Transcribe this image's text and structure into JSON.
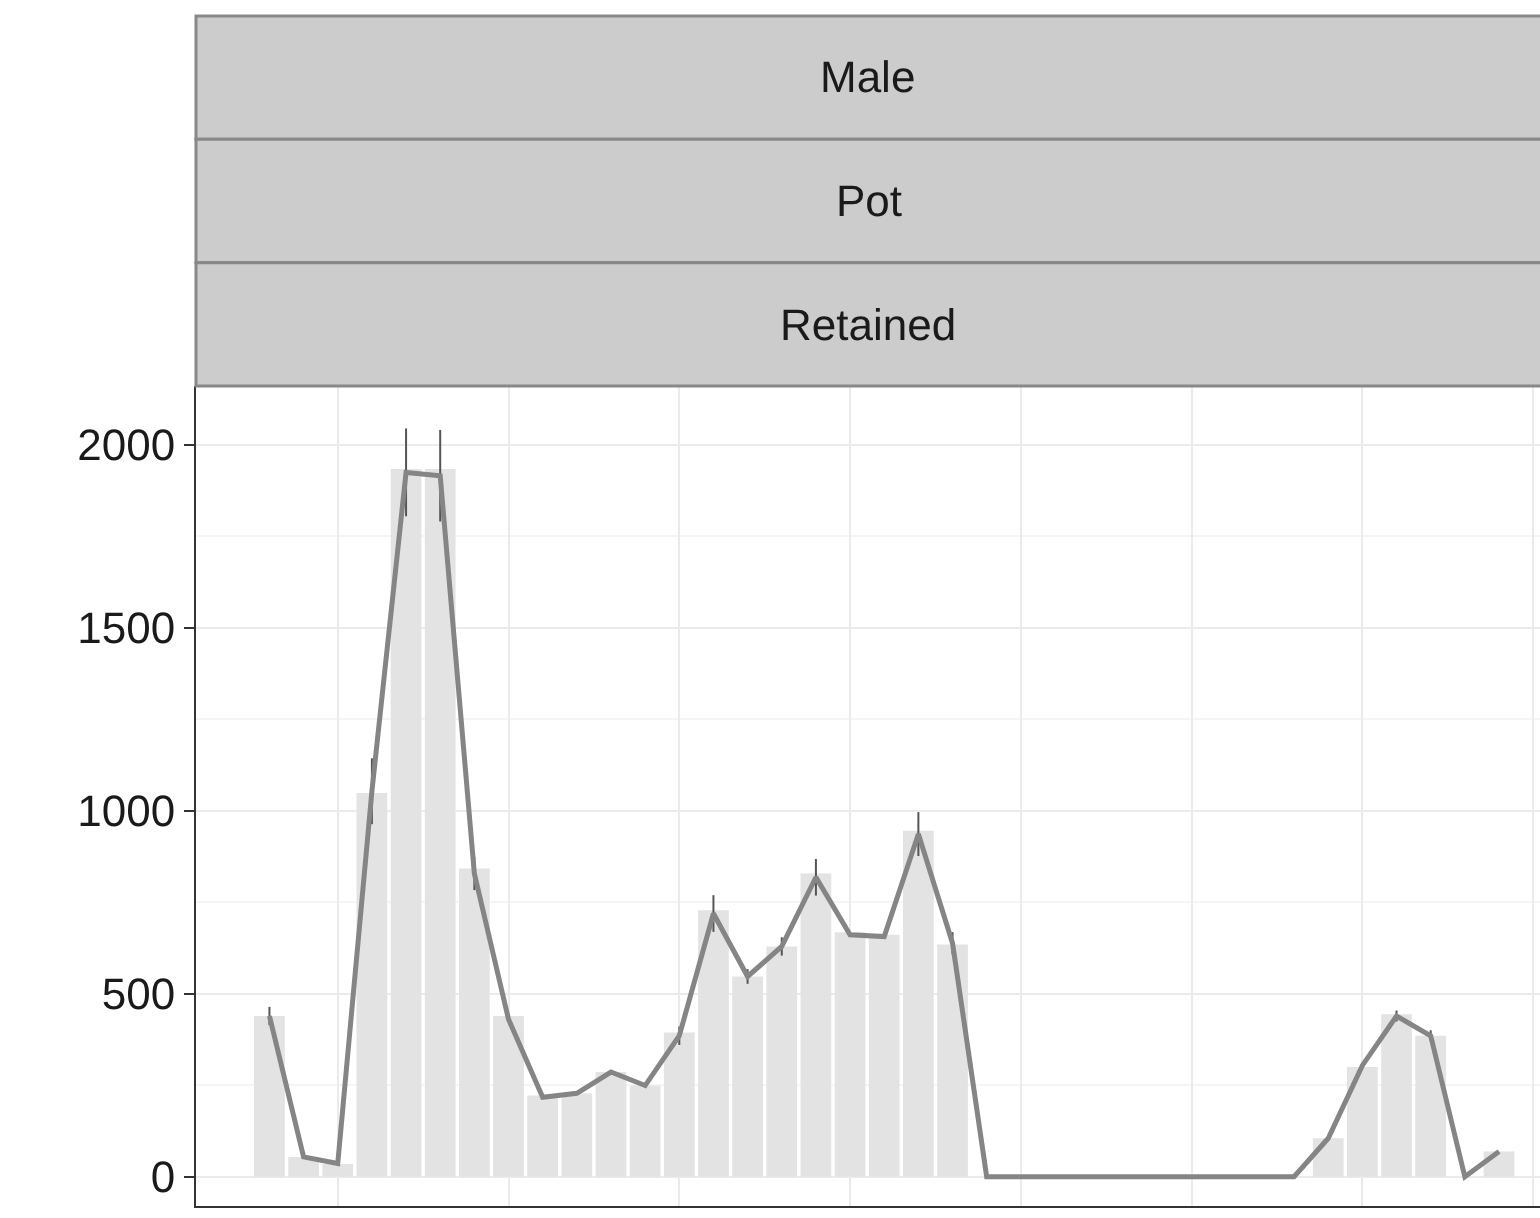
{
  "chart_data": {
    "type": "bar",
    "annotations": [
      "Male",
      "Pot",
      "Retained"
    ],
    "categories": [
      null,
      null,
      null,
      null,
      null,
      null,
      null,
      null,
      null,
      null,
      null,
      null,
      null,
      null,
      null,
      null,
      null,
      null,
      null,
      null,
      null,
      null,
      null,
      null,
      null,
      null,
      null,
      null,
      null,
      null,
      null,
      null,
      null,
      null,
      null,
      null,
      null
    ],
    "series": [
      {
        "color": "#e3e3e3",
        "values": [
          439,
          54,
          35,
          1048,
          1933,
          1933,
          842,
          439,
          222,
          228,
          286,
          249,
          394,
          728,
          547,
          629,
          828,
          668,
          661,
          945,
          634,
          0,
          0,
          0,
          0,
          0,
          0,
          0,
          0,
          0,
          0,
          105,
          300,
          444,
          385,
          0,
          69
        ]
      },
      {
        "type": "line",
        "color": "#858585",
        "marker": "none",
        "line_style": "solid",
        "values": [
          439,
          54,
          36,
          1053,
          1924,
          1915,
          828,
          430,
          217,
          228,
          286,
          249,
          385,
          719,
          547,
          629,
          818,
          661,
          656,
          936,
          638,
          0,
          0,
          0,
          0,
          0,
          0,
          0,
          0,
          0,
          0,
          105,
          304,
          439,
          385,
          0,
          69
        ],
        "errors": [
          25,
          null,
          null,
          90,
          120,
          125,
          45,
          null,
          null,
          null,
          null,
          null,
          25,
          50,
          20,
          25,
          50,
          null,
          null,
          60,
          30,
          null,
          null,
          null,
          null,
          null,
          null,
          null,
          null,
          null,
          null,
          null,
          null,
          15,
          15,
          null,
          null
        ]
      }
    ],
    "ylim": [
      -80,
      2160
    ],
    "yticks": [
      0,
      500,
      1000,
      1500,
      2000
    ],
    "grid": true,
    "tick_labels": "y"
  }
}
